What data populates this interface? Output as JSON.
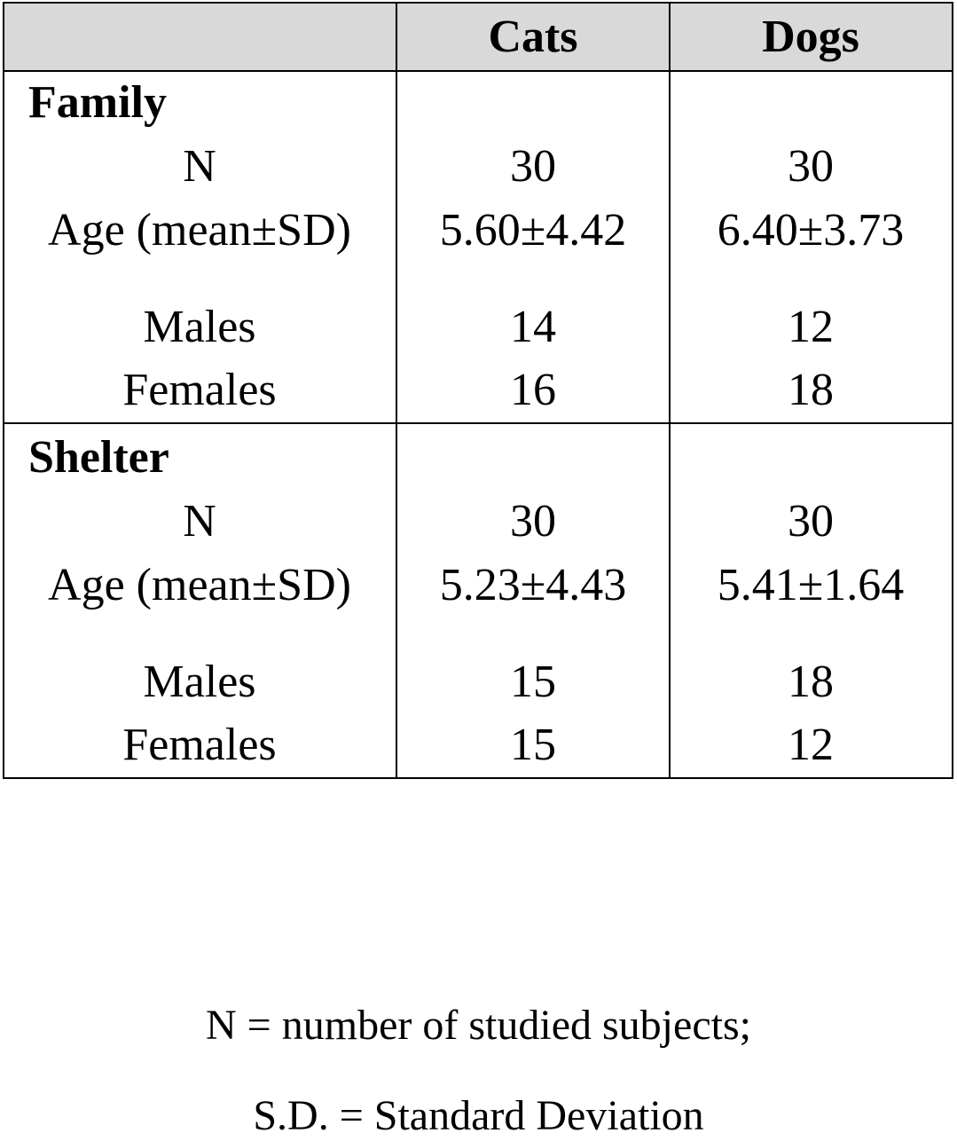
{
  "table": {
    "headers": [
      "",
      "Cats",
      "Dogs"
    ],
    "groups": [
      {
        "name": "Family",
        "rows": [
          {
            "label": "N",
            "cats": "30",
            "dogs": "30"
          },
          {
            "label": "Age (mean±SD)",
            "cats": "5.60±4.42",
            "dogs": "6.40±3.73"
          },
          {
            "label": "Males",
            "cats": "14",
            "dogs": "12"
          },
          {
            "label": "Females",
            "cats": "16",
            "dogs": "18"
          }
        ]
      },
      {
        "name": "Shelter",
        "rows": [
          {
            "label": "N",
            "cats": "30",
            "dogs": "30"
          },
          {
            "label": "Age (mean±SD)",
            "cats": "5.23±4.43",
            "dogs": "5.41±1.64"
          },
          {
            "label": "Males",
            "cats": "15",
            "dogs": "18"
          },
          {
            "label": "Females",
            "cats": "15",
            "dogs": "12"
          }
        ]
      }
    ]
  },
  "notes": [
    "N = number of studied subjects;",
    "S.D. = Standard Deviation"
  ]
}
